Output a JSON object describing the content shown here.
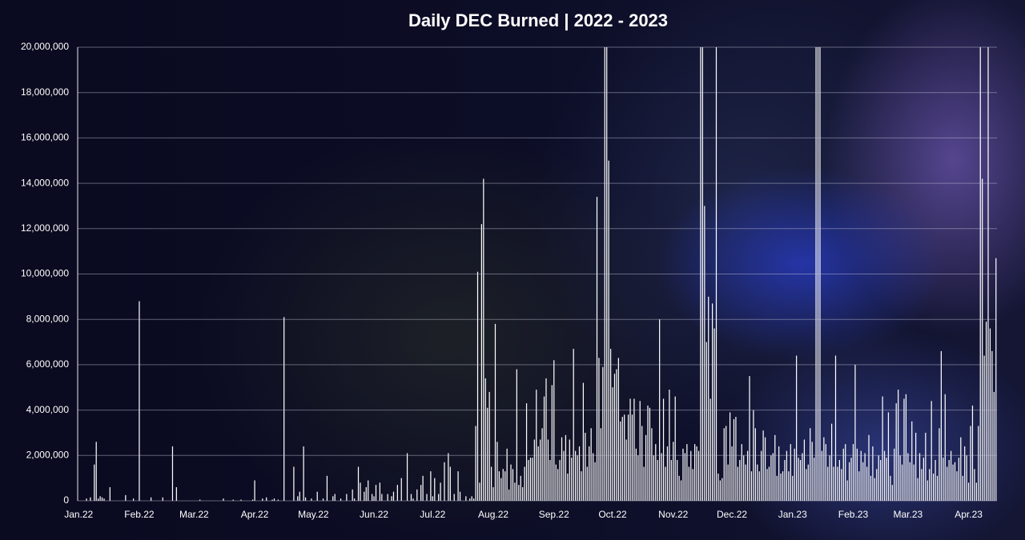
{
  "chart_data": {
    "type": "bar",
    "title": "Daily DEC Burned | 2022 - 2023",
    "color": "#ffffff",
    "grid": true,
    "ylim": [
      0,
      20000000
    ],
    "yticks": [
      0,
      {
        "value": 2000000,
        "label": "2,000,000"
      },
      {
        "value": 4000000,
        "label": "4,000,000"
      },
      {
        "value": 6000000,
        "label": "6,000,000"
      },
      {
        "value": 8000000,
        "label": "8,000,000"
      },
      {
        "value": 10000000,
        "label": "10,000,000"
      },
      {
        "value": 12000000,
        "label": "12,000,000"
      },
      {
        "value": 14000000,
        "label": "14,000,000"
      },
      {
        "value": 16000000,
        "label": "16,000,000"
      },
      {
        "value": 18000000,
        "label": "18,000,000"
      },
      {
        "value": 20000000,
        "label": "20,000,000"
      }
    ],
    "categories": [
      "Jan.22",
      null,
      null,
      null,
      null,
      null,
      null,
      null,
      null,
      null,
      null,
      null,
      null,
      null,
      null,
      null,
      null,
      null,
      null,
      null,
      null,
      null,
      null,
      null,
      null,
      null,
      null,
      null,
      null,
      null,
      null,
      "Feb.22",
      null,
      null,
      null,
      null,
      null,
      null,
      null,
      null,
      null,
      null,
      null,
      null,
      null,
      null,
      null,
      null,
      null,
      null,
      null,
      null,
      null,
      null,
      null,
      null,
      null,
      null,
      null,
      "Mar.22",
      null,
      null,
      null,
      null,
      null,
      null,
      null,
      null,
      null,
      null,
      null,
      null,
      null,
      null,
      null,
      null,
      null,
      null,
      null,
      null,
      null,
      null,
      null,
      null,
      null,
      null,
      null,
      null,
      null,
      null,
      "Apr.22",
      null,
      null,
      null,
      null,
      null,
      null,
      null,
      null,
      null,
      null,
      null,
      null,
      null,
      null,
      null,
      null,
      null,
      null,
      null,
      null,
      null,
      null,
      null,
      null,
      null,
      null,
      null,
      null,
      null,
      "May.22",
      null,
      null,
      null,
      null,
      null,
      null,
      null,
      null,
      null,
      null,
      null,
      null,
      null,
      null,
      null,
      null,
      null,
      null,
      null,
      null,
      null,
      null,
      null,
      null,
      null,
      null,
      null,
      null,
      null,
      null,
      "Jun.22",
      null,
      null,
      null,
      null,
      null,
      null,
      null,
      null,
      null,
      null,
      null,
      null,
      null,
      null,
      null,
      null,
      null,
      null,
      null,
      null,
      null,
      null,
      null,
      null,
      null,
      null,
      null,
      null,
      null,
      "Jul.22",
      null,
      null,
      null,
      null,
      null,
      null,
      null,
      null,
      null,
      null,
      null,
      null,
      null,
      null,
      null,
      null,
      null,
      null,
      null,
      null,
      null,
      null,
      null,
      null,
      null,
      null,
      null,
      null,
      null,
      null,
      "Aug.22",
      null,
      null,
      null,
      null,
      null,
      null,
      null,
      null,
      null,
      null,
      null,
      null,
      null,
      null,
      null,
      null,
      null,
      null,
      null,
      null,
      null,
      null,
      null,
      null,
      null,
      null,
      null,
      null,
      null,
      null,
      "Sep.22",
      null,
      null,
      null,
      null,
      null,
      null,
      null,
      null,
      null,
      null,
      null,
      null,
      null,
      null,
      null,
      null,
      null,
      null,
      null,
      null,
      null,
      null,
      null,
      null,
      null,
      null,
      null,
      null,
      null,
      "Oct.22",
      null,
      null,
      null,
      null,
      null,
      null,
      null,
      null,
      null,
      null,
      null,
      null,
      null,
      null,
      null,
      null,
      null,
      null,
      null,
      null,
      null,
      null,
      null,
      null,
      null,
      null,
      null,
      null,
      null,
      null,
      "Nov.22",
      null,
      null,
      null,
      null,
      null,
      null,
      null,
      null,
      null,
      null,
      null,
      null,
      null,
      null,
      null,
      null,
      null,
      null,
      null,
      null,
      null,
      null,
      null,
      null,
      null,
      null,
      null,
      null,
      null,
      "Dec.22",
      null,
      null,
      null,
      null,
      null,
      null,
      null,
      null,
      null,
      null,
      null,
      null,
      null,
      null,
      null,
      null,
      null,
      null,
      null,
      null,
      null,
      null,
      null,
      null,
      null,
      null,
      null,
      null,
      null,
      null,
      "Jan.23",
      null,
      null,
      null,
      null,
      null,
      null,
      null,
      null,
      null,
      null,
      null,
      null,
      null,
      null,
      null,
      null,
      null,
      null,
      null,
      null,
      null,
      null,
      null,
      null,
      null,
      null,
      null,
      null,
      null,
      null,
      "Feb.23",
      null,
      null,
      null,
      null,
      null,
      null,
      null,
      null,
      null,
      null,
      null,
      null,
      null,
      null,
      null,
      null,
      null,
      null,
      null,
      null,
      null,
      null,
      null,
      null,
      null,
      null,
      null,
      "Mar.23",
      null,
      null,
      null,
      null,
      null,
      null,
      null,
      null,
      null,
      null,
      null,
      null,
      null,
      null,
      null,
      null,
      null,
      null,
      null,
      null,
      null,
      null,
      null,
      null,
      null,
      null,
      null,
      null,
      null,
      null,
      "Apr.23",
      null,
      null,
      null,
      null,
      null,
      null,
      null,
      null,
      null,
      null,
      null,
      null,
      null,
      null
    ],
    "values": [
      0,
      0,
      0,
      0,
      100000,
      0,
      150000,
      0,
      1600000,
      2600000,
      100000,
      200000,
      150000,
      100000,
      0,
      0,
      600000,
      0,
      0,
      0,
      0,
      0,
      0,
      0,
      250000,
      0,
      0,
      0,
      100000,
      0,
      0,
      8800000,
      0,
      0,
      0,
      0,
      0,
      150000,
      0,
      0,
      0,
      0,
      0,
      150000,
      0,
      0,
      0,
      0,
      2400000,
      0,
      600000,
      0,
      0,
      0,
      0,
      0,
      0,
      0,
      0,
      0,
      0,
      0,
      50000,
      0,
      0,
      0,
      0,
      0,
      0,
      0,
      0,
      0,
      0,
      0,
      100000,
      0,
      0,
      0,
      0,
      50000,
      0,
      0,
      0,
      50000,
      0,
      0,
      0,
      0,
      0,
      50000,
      900000,
      0,
      0,
      0,
      100000,
      0,
      150000,
      0,
      0,
      50000,
      100000,
      0,
      50000,
      0,
      0,
      8100000,
      0,
      0,
      0,
      0,
      1500000,
      0,
      200000,
      400000,
      0,
      2400000,
      150000,
      0,
      0,
      100000,
      0,
      0,
      400000,
      0,
      0,
      100000,
      0,
      1100000,
      0,
      0,
      200000,
      300000,
      0,
      0,
      100000,
      0,
      0,
      300000,
      0,
      0,
      500000,
      100000,
      0,
      1500000,
      800000,
      0,
      400000,
      600000,
      900000,
      0,
      300000,
      200000,
      700000,
      0,
      800000,
      300000,
      0,
      0,
      300000,
      0,
      200000,
      400000,
      0,
      700000,
      0,
      1000000,
      0,
      0,
      2100000,
      0,
      300000,
      100000,
      0,
      500000,
      0,
      700000,
      1100000,
      0,
      300000,
      0,
      1300000,
      200000,
      1000000,
      0,
      300000,
      800000,
      0,
      1700000,
      0,
      2100000,
      1500000,
      0,
      300000,
      0,
      1300000,
      400000,
      0,
      0,
      200000,
      0,
      100000,
      200000,
      100000,
      3300000,
      10100000,
      800000,
      12200000,
      14200000,
      5400000,
      4100000,
      4800000,
      1500000,
      600000,
      7800000,
      2600000,
      1300000,
      1000000,
      1400000,
      1300000,
      2300000,
      500000,
      1600000,
      1400000,
      800000,
      5800000,
      700000,
      1100000,
      600000,
      1500000,
      4300000,
      1800000,
      1900000,
      1900000,
      2700000,
      4900000,
      2400000,
      2700000,
      3200000,
      4600000,
      5400000,
      2700000,
      1800000,
      5100000,
      6200000,
      1600000,
      1400000,
      1800000,
      2800000,
      2200000,
      2900000,
      1200000,
      2700000,
      1900000,
      6700000,
      2200000,
      2000000,
      2400000,
      1300000,
      5200000,
      3000000,
      1500000,
      2400000,
      3200000,
      2100000,
      1700000,
      13400000,
      6300000,
      3200000,
      5900000,
      20000000,
      20000000,
      15000000,
      6700000,
      5000000,
      5600000,
      5800000,
      6300000,
      3500000,
      3700000,
      3800000,
      2700000,
      3800000,
      4500000,
      3800000,
      4500000,
      2300000,
      2000000,
      4400000,
      3300000,
      1500000,
      2900000,
      4200000,
      4100000,
      3200000,
      2000000,
      2500000,
      1800000,
      8000000,
      2100000,
      4500000,
      1500000,
      2400000,
      4900000,
      1800000,
      2600000,
      4600000,
      1800000,
      1100000,
      900000,
      2300000,
      2100000,
      2500000,
      1500000,
      2200000,
      1400000,
      2500000,
      2400000,
      2200000,
      20000000,
      20000000,
      13000000,
      7000000,
      9000000,
      4500000,
      8700000,
      7600000,
      20000000,
      1200000,
      900000,
      1000000,
      3200000,
      3300000,
      1600000,
      3900000,
      2400000,
      3600000,
      3700000,
      1500000,
      1800000,
      2500000,
      2000000,
      1600000,
      2200000,
      5500000,
      1300000,
      4000000,
      3200000,
      1600000,
      1300000,
      2200000,
      3100000,
      2800000,
      1400000,
      1500000,
      2000000,
      2100000,
      2900000,
      1100000,
      2400000,
      1200000,
      1300000,
      1800000,
      2200000,
      1300000,
      2500000,
      1100000,
      2300000,
      6400000,
      1900000,
      1800000,
      2100000,
      2700000,
      1400000,
      1600000,
      3200000,
      2600000,
      1900000,
      20000000,
      20000000,
      20000000,
      2200000,
      2800000,
      2500000,
      1500000,
      2000000,
      3400000,
      1500000,
      6400000,
      1500000,
      1800000,
      1400000,
      2300000,
      2500000,
      900000,
      1700000,
      1900000,
      2500000,
      6000000,
      2300000,
      1300000,
      2200000,
      1700000,
      2100000,
      1500000,
      2900000,
      1100000,
      2400000,
      1000000,
      1400000,
      2000000,
      1800000,
      4600000,
      2200000,
      1900000,
      3900000,
      1100000,
      700000,
      2300000,
      4300000,
      4900000,
      2000000,
      1600000,
      4500000,
      4700000,
      2100000,
      1700000,
      3500000,
      1600000,
      3000000,
      1000000,
      2100000,
      1400000,
      1900000,
      3000000,
      900000,
      1400000,
      4400000,
      1200000,
      1800000,
      1100000,
      3200000,
      6600000,
      1900000,
      4700000,
      1500000,
      1800000,
      2200000,
      1600000,
      1700000,
      1300000,
      1900000,
      2800000,
      1100000,
      2400000,
      2000000,
      800000,
      3300000,
      4200000,
      1400000,
      800000,
      3300000,
      20000000,
      14200000,
      6400000,
      7900000,
      20000000,
      7600000,
      6600000,
      4800000,
      10700000
    ]
  }
}
